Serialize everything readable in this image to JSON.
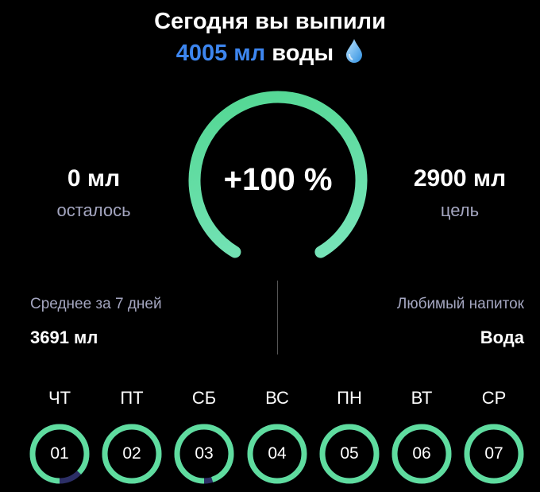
{
  "header": {
    "title": "Сегодня вы выпили",
    "amount": "4005 мл",
    "suffix": "воды",
    "icon": "water-drop-icon"
  },
  "progress": {
    "percent_label": "+100 %",
    "fraction": 1.0,
    "color_start": "#4fd68f",
    "color_end": "#7ee6c0"
  },
  "remaining": {
    "value": "0 мл",
    "label": "осталось"
  },
  "goal": {
    "value": "2900 мл",
    "label": "цель"
  },
  "average": {
    "label": "Среднее за 7 дней",
    "value": "3691 мл"
  },
  "favorite": {
    "label": "Любимый напиток",
    "value": "Вода"
  },
  "days": [
    {
      "name": "ЧТ",
      "num": "01",
      "progress": 0.87
    },
    {
      "name": "ПТ",
      "num": "02",
      "progress": 1
    },
    {
      "name": "СБ",
      "num": "03",
      "progress": 0.95
    },
    {
      "name": "ВС",
      "num": "04",
      "progress": 1
    },
    {
      "name": "ПН",
      "num": "05",
      "progress": 1
    },
    {
      "name": "ВТ",
      "num": "06",
      "progress": 1
    },
    {
      "name": "СР",
      "num": "07",
      "progress": 1
    }
  ],
  "colors": {
    "accent": "#3d86f0",
    "ring": "#5fdc9f",
    "ring_track": "#2c2f66"
  }
}
